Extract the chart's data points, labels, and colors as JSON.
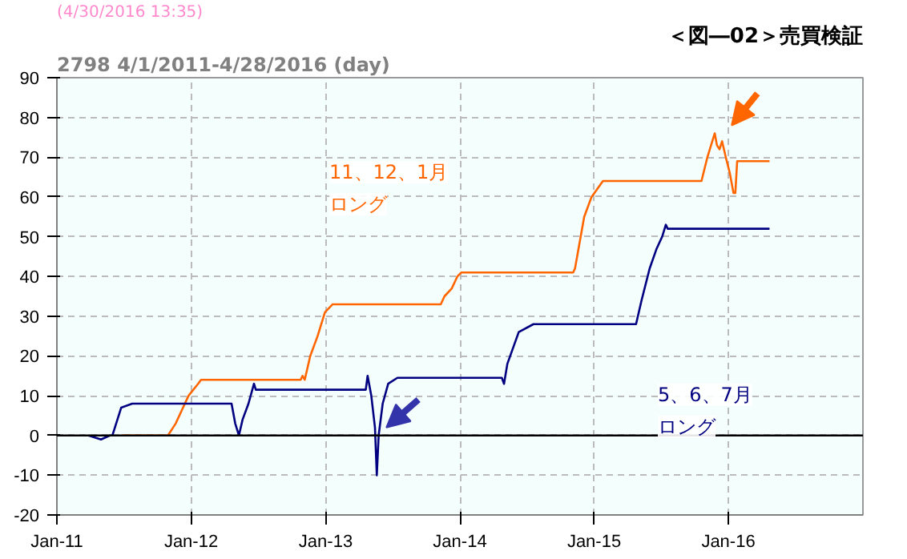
{
  "chart_data": {
    "type": "line",
    "title": "2798 4/1/2011-4/28/2016 (day)",
    "subtitle": "＜図―02＞売買検証",
    "annotations": [
      "(4/30/2016 13:35)",
      "11、12、1月",
      "ロング",
      "5、6、7月",
      "ロング"
    ],
    "xlim": [
      "2011-01-01",
      "2017-01-01"
    ],
    "xticks": [
      {
        "value": "2011-01-01",
        "label": "Jan-11"
      },
      {
        "value": "2012-01-01",
        "label": "Jan-12"
      },
      {
        "value": "2013-01-01",
        "label": "Jan-13"
      },
      {
        "value": "2014-01-01",
        "label": "Jan-14"
      },
      {
        "value": "2015-01-01",
        "label": "Jan-15"
      },
      {
        "value": "2016-01-01",
        "label": "Jan-16"
      }
    ],
    "ylim": [
      -20,
      90
    ],
    "yticks": [
      -20,
      -10,
      0,
      10,
      20,
      30,
      40,
      50,
      60,
      70,
      80,
      90
    ],
    "grid": true,
    "marker": "none",
    "line_style": "solid",
    "ref_lines": [
      {
        "axis": "y",
        "value": 0,
        "color": "#000000"
      }
    ],
    "series": [
      {
        "color": "#ff6600",
        "x": [
          "2011-06-25",
          "2011-10-30",
          "2011-11-20",
          "2011-12-10",
          "2011-12-25",
          "2012-01-20",
          "2012-01-28",
          "2012-10-25",
          "2012-10-30",
          "2012-11-05",
          "2012-11-20",
          "2012-12-10",
          "2012-12-30",
          "2013-01-20",
          "2013-11-10",
          "2013-11-20",
          "2013-12-10",
          "2013-12-25",
          "2014-01-05",
          "2014-11-05",
          "2014-11-10",
          "2014-12-05",
          "2014-12-25",
          "2015-01-25",
          "2015-10-20",
          "2015-11-05",
          "2015-11-25",
          "2015-12-01",
          "2015-12-08",
          "2015-12-15",
          "2015-12-25",
          "2016-01-05",
          "2016-01-15",
          "2016-01-20",
          "2016-01-25",
          "2016-04-22"
        ],
        "values": [
          0,
          0,
          3,
          7,
          10,
          13,
          14,
          14,
          15,
          14,
          20,
          25,
          31,
          33,
          33,
          35,
          37,
          40,
          41,
          41,
          42,
          55,
          60,
          64,
          64,
          70,
          76,
          73,
          72,
          74,
          70,
          66,
          61,
          61,
          69,
          69
        ]
      },
      {
        "color": "#000080",
        "x": [
          "2011-03-28",
          "2011-05-01",
          "2011-05-25",
          "2011-06-01",
          "2011-06-25",
          "2011-07-10",
          "2011-07-25",
          "2012-04-20",
          "2012-04-30",
          "2012-05-10",
          "2012-05-20",
          "2012-06-05",
          "2012-06-20",
          "2012-06-25",
          "2012-07-20",
          "2013-04-20",
          "2013-04-25",
          "2013-05-05",
          "2013-05-15",
          "2013-05-20",
          "2013-05-25",
          "2013-06-05",
          "2013-06-20",
          "2013-07-15",
          "2014-04-25",
          "2014-05-01",
          "2014-05-10",
          "2014-06-10",
          "2014-07-20",
          "2015-04-25",
          "2015-05-10",
          "2015-06-01",
          "2015-06-20",
          "2015-07-05",
          "2015-07-15",
          "2015-07-20",
          "2016-04-22"
        ],
        "values": [
          0,
          -1,
          0,
          0,
          7,
          7.5,
          8,
          8,
          3,
          0,
          4,
          8,
          13,
          11.5,
          11.5,
          11.5,
          15,
          10,
          2,
          -10,
          0,
          8,
          13,
          14.5,
          14.5,
          13,
          18,
          26,
          28,
          28,
          34,
          42,
          47,
          50,
          53,
          52,
          52
        ]
      }
    ]
  }
}
